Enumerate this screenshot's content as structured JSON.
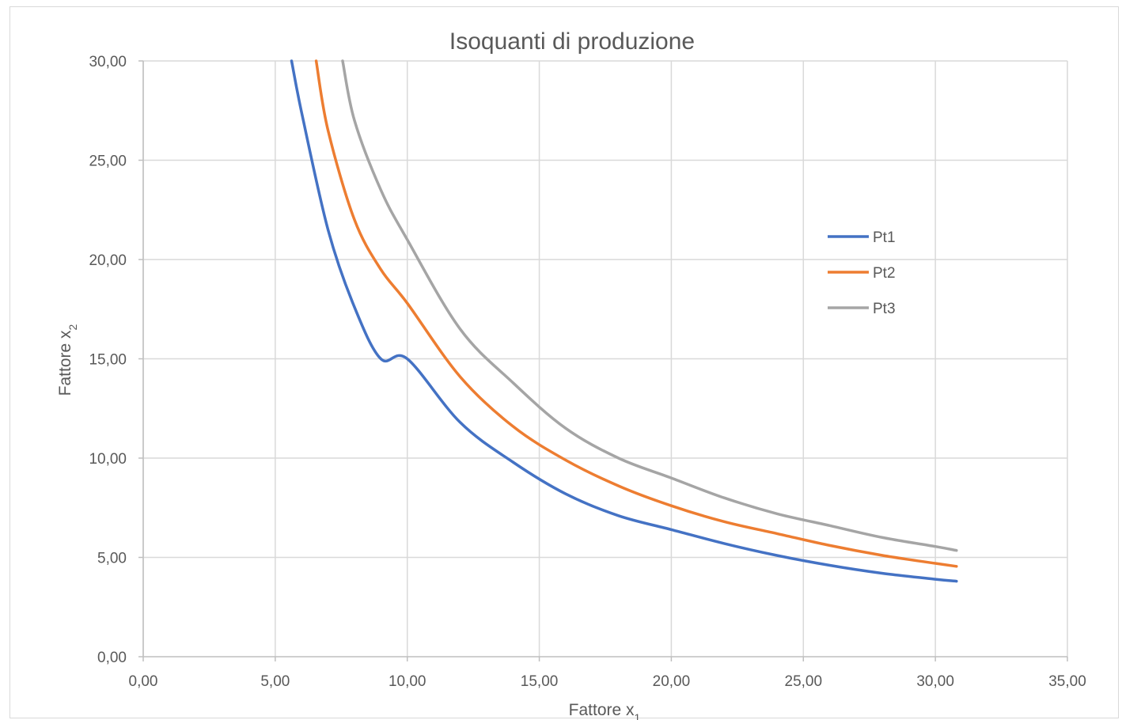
{
  "chart_data": {
    "type": "line",
    "title": "Isoquanti di produzione",
    "xlabel": {
      "text": "Fattore x",
      "sub": "1"
    },
    "ylabel": {
      "text": "Fattore x",
      "sub": "2"
    },
    "xlim": [
      0,
      35
    ],
    "ylim": [
      0,
      30
    ],
    "x_ticks": [
      "0,00",
      "5,00",
      "10,00",
      "15,00",
      "20,00",
      "25,00",
      "30,00",
      "35,00"
    ],
    "y_ticks": [
      "0,00",
      "5,00",
      "10,00",
      "15,00",
      "20,00",
      "25,00",
      "30,00"
    ],
    "grid": true,
    "legend_position": "right",
    "series": [
      {
        "name": "Pt1",
        "color": "#4472c4",
        "x": [
          5.62,
          6,
          7,
          8,
          9,
          10,
          12,
          14,
          16,
          18,
          20,
          22,
          24,
          26,
          28,
          30,
          30.8
        ],
        "y": [
          30.0,
          27.4,
          21.5,
          17.6,
          15.0,
          15.0,
          11.8,
          9.8,
          8.2,
          7.1,
          6.4,
          5.7,
          5.1,
          4.6,
          4.2,
          3.9,
          3.8
        ]
      },
      {
        "name": "Pt2",
        "color": "#ed7d31",
        "x": [
          6.55,
          7,
          8,
          9,
          10,
          12,
          14,
          16,
          18,
          20,
          22,
          24,
          26,
          28,
          30,
          30.8
        ],
        "y": [
          30.0,
          26.5,
          22.0,
          19.5,
          17.8,
          14.1,
          11.6,
          9.9,
          8.6,
          7.6,
          6.8,
          6.2,
          5.6,
          5.1,
          4.7,
          4.55
        ]
      },
      {
        "name": "Pt3",
        "color": "#a5a5a5",
        "x": [
          7.55,
          8,
          9,
          10,
          12,
          14,
          16,
          18,
          20,
          22,
          24,
          26,
          28,
          30,
          30.8
        ],
        "y": [
          30.0,
          27.0,
          23.5,
          21.0,
          16.5,
          13.8,
          11.5,
          10.0,
          9.0,
          8.0,
          7.2,
          6.6,
          6.0,
          5.55,
          5.35
        ]
      }
    ]
  }
}
